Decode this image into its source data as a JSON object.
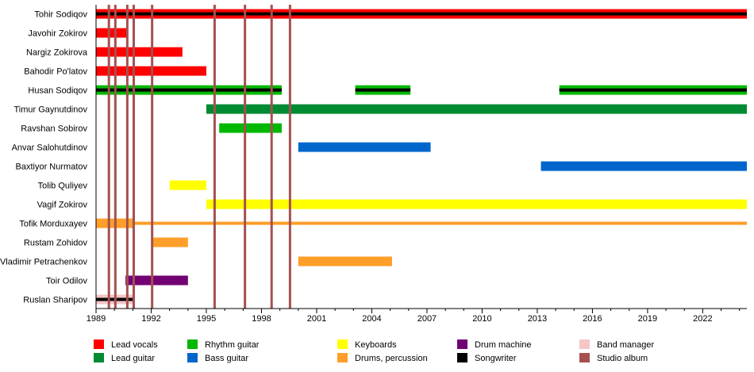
{
  "chart_data": {
    "type": "timeline",
    "xlim": [
      1989,
      2024.4
    ],
    "x_ticks": [
      "1989",
      "1992",
      "1995",
      "1998",
      "2001",
      "2004",
      "2007",
      "2010",
      "2013",
      "2016",
      "2019",
      "2022"
    ],
    "colors": {
      "Lead vocals": "#ff0000",
      "Lead guitar": "#008a32",
      "Rhythm guitar": "#00b800",
      "Bass guitar": "#0066cc",
      "Keyboards": "#ffff00",
      "Drums, percussion": "#ff9e28",
      "Drum machine": "#730073",
      "Songwriter": "#000000",
      "Band manager": "#f5c6c6",
      "Studio album": "#a55050"
    },
    "legend": [
      [
        "Lead vocals",
        "Rhythm guitar",
        "Keyboards",
        "Drum machine",
        "Band manager"
      ],
      [
        "Lead guitar",
        "Bass guitar",
        "Drums, percussion",
        "Songwriter",
        "Studio album"
      ]
    ],
    "studio_albums": [
      1989.7,
      1990.05,
      1990.7,
      1991.05,
      1992.05,
      1995.45,
      1997.1,
      1998.55,
      1999.55
    ],
    "members": [
      {
        "name": "Tohir Sodiqov",
        "bars": [
          {
            "role": "Lead vocals",
            "from": 1989,
            "to": 2024.4,
            "sub": "Songwriter"
          }
        ]
      },
      {
        "name": "Javohir Zokirov",
        "bars": [
          {
            "role": "Lead vocals",
            "from": 1989,
            "to": 1990.7
          }
        ]
      },
      {
        "name": "Nargiz Zokirova",
        "bars": [
          {
            "role": "Lead vocals",
            "from": 1989,
            "to": 1993.7
          }
        ]
      },
      {
        "name": "Bahodir Po'latov",
        "bars": [
          {
            "role": "Lead vocals",
            "from": 1989,
            "to": 1995
          }
        ]
      },
      {
        "name": "Husan Sodiqov",
        "bars": [
          {
            "role": "Rhythm guitar",
            "from": 1989,
            "to": 1999.1,
            "sub": "Songwriter"
          },
          {
            "role": "Rhythm guitar",
            "from": 2003.1,
            "to": 2006.1,
            "sub": "Songwriter"
          },
          {
            "role": "Rhythm guitar",
            "from": 2014.2,
            "to": 2024.4,
            "sub": "Songwriter"
          }
        ]
      },
      {
        "name": "Timur Gaynutdinov",
        "bars": [
          {
            "role": "Lead guitar",
            "from": 1995,
            "to": 2024.4
          }
        ]
      },
      {
        "name": "Ravshan Sobirov",
        "bars": [
          {
            "role": "Rhythm guitar",
            "from": 1995.7,
            "to": 1999.1
          }
        ]
      },
      {
        "name": "Anvar Salohutdinov",
        "bars": [
          {
            "role": "Bass guitar",
            "from": 2000,
            "to": 2007.2
          }
        ]
      },
      {
        "name": "Baxtiyor Nurmatov",
        "bars": [
          {
            "role": "Bass guitar",
            "from": 2013.2,
            "to": 2024.4
          }
        ]
      },
      {
        "name": "Tolib Quliyev",
        "bars": [
          {
            "role": "Keyboards",
            "from": 1993,
            "to": 1995
          }
        ]
      },
      {
        "name": "Vagif Zokirov",
        "bars": [
          {
            "role": "Keyboards",
            "from": 1995,
            "to": 2024.4
          }
        ]
      },
      {
        "name": "Tofik Morduxayev",
        "bars": [
          {
            "role": "Drums, percussion",
            "from": 1989,
            "to": 1991
          },
          {
            "role": "Drums, percussion",
            "from": 1991,
            "to": 2024.4,
            "thin": true
          }
        ]
      },
      {
        "name": "Rustam Zohidov",
        "bars": [
          {
            "role": "Drums, percussion",
            "from": 1992,
            "to": 1994
          }
        ]
      },
      {
        "name": "Vladimir Petrachenkov",
        "bars": [
          {
            "role": "Drums, percussion",
            "from": 2000,
            "to": 2005.1
          }
        ]
      },
      {
        "name": "Toir Odilov",
        "bars": [
          {
            "role": "Drum machine",
            "from": 1990.6,
            "to": 1994
          }
        ]
      },
      {
        "name": "Ruslan Sharipov",
        "bars": [
          {
            "role": "Band manager",
            "from": 1989,
            "to": 1991,
            "sub": "Songwriter"
          }
        ]
      }
    ]
  }
}
